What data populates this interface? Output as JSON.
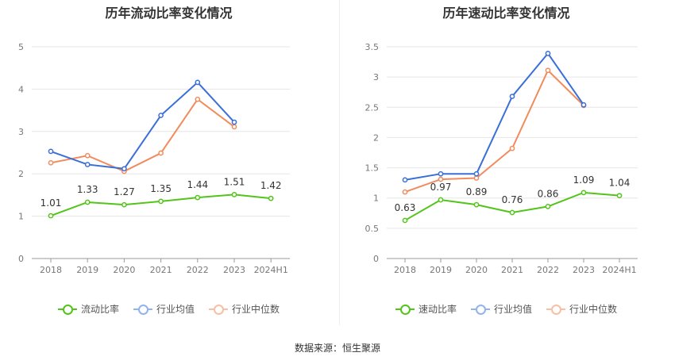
{
  "chart_data": [
    {
      "type": "line",
      "title": "历年流动比率变化情况",
      "categories": [
        "2018",
        "2019",
        "2020",
        "2021",
        "2022",
        "2023",
        "2024H1"
      ],
      "ylim": [
        0,
        5
      ],
      "yticks": [
        "0",
        "1",
        "2",
        "3",
        "4",
        "5"
      ],
      "grid": true,
      "legend_position": "bottom",
      "series": [
        {
          "name": "流动比率",
          "color": "#52c41a",
          "values": [
            1.01,
            1.33,
            1.27,
            1.35,
            1.44,
            1.51,
            1.42
          ],
          "labels": [
            "1.01",
            "1.33",
            "1.27",
            "1.35",
            "1.44",
            "1.51",
            "1.42"
          ]
        },
        {
          "name": "行业均值",
          "color": "#3b6fd8",
          "values": [
            2.53,
            2.22,
            2.12,
            3.38,
            4.16,
            3.22,
            null
          ]
        },
        {
          "name": "行业中位数",
          "color": "#f28b5c",
          "values": [
            2.26,
            2.43,
            2.06,
            2.49,
            3.76,
            3.11,
            null
          ]
        }
      ]
    },
    {
      "type": "line",
      "title": "历年速动比率变化情况",
      "categories": [
        "2018",
        "2019",
        "2020",
        "2021",
        "2022",
        "2023",
        "2024H1"
      ],
      "ylim": [
        0,
        3.5
      ],
      "yticks": [
        "0",
        "0.5",
        "1",
        "1.5",
        "2",
        "2.5",
        "3",
        "3.5"
      ],
      "grid": true,
      "legend_position": "bottom",
      "series": [
        {
          "name": "速动比率",
          "color": "#52c41a",
          "values": [
            0.63,
            0.97,
            0.89,
            0.76,
            0.86,
            1.09,
            1.04
          ],
          "labels": [
            "0.63",
            "0.97",
            "0.89",
            "0.76",
            "0.86",
            "1.09",
            "1.04"
          ]
        },
        {
          "name": "行业均值",
          "color": "#3b6fd8",
          "values": [
            1.3,
            1.4,
            1.4,
            2.68,
            3.39,
            2.54,
            null
          ]
        },
        {
          "name": "行业中位数",
          "color": "#f28b5c",
          "values": [
            1.1,
            1.31,
            1.33,
            1.82,
            3.11,
            2.53,
            null
          ]
        }
      ]
    }
  ],
  "legend_colors": {
    "series1_line": "#52c41a",
    "series2_line": "#91b4ee",
    "series3_line": "#f7bfa5"
  },
  "source": "数据来源：恒生聚源"
}
